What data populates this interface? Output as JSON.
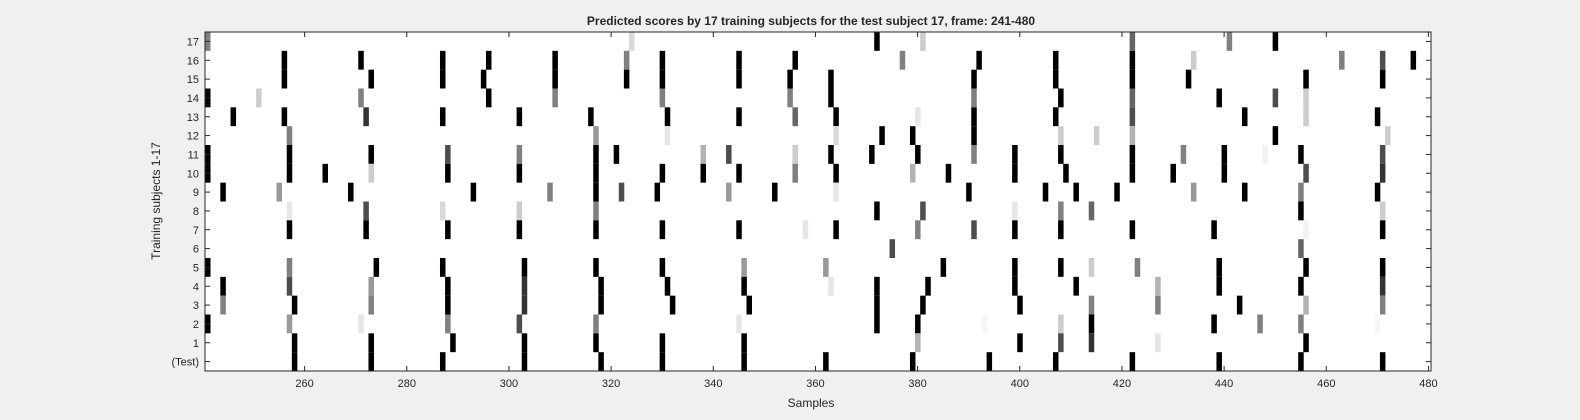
{
  "chart_data": {
    "type": "heatmap",
    "title": "Predicted scores by 17 training subjects for the test subject 17, frame: 241-480",
    "xlabel": "Samples",
    "ylabel": "Training subjects 1-17",
    "xlim": [
      241,
      480
    ],
    "xticks": [
      260,
      280,
      300,
      320,
      340,
      360,
      380,
      400,
      420,
      440,
      460,
      480
    ],
    "rows": [
      "17",
      "16",
      "15",
      "14",
      "13",
      "12",
      "11",
      "10",
      "9",
      "8",
      "7",
      "6",
      "5",
      "4",
      "3",
      "2",
      "1",
      "(Test)"
    ],
    "colormap": "gray (0 = black, 1 = white)",
    "background_value": 1,
    "cells": {
      "17": [
        [
          241,
          0.5
        ],
        [
          324,
          0.85
        ],
        [
          372,
          0
        ],
        [
          381,
          0.8
        ],
        [
          422,
          0.4
        ],
        [
          441,
          0.5
        ],
        [
          450,
          0
        ]
      ],
      "16": [
        [
          256,
          0
        ],
        [
          271,
          0
        ],
        [
          287,
          0
        ],
        [
          296,
          0
        ],
        [
          309,
          0
        ],
        [
          323,
          0.5
        ],
        [
          330,
          0
        ],
        [
          345,
          0
        ],
        [
          356,
          0
        ],
        [
          377,
          0.5
        ],
        [
          392,
          0
        ],
        [
          407,
          0
        ],
        [
          422,
          0
        ],
        [
          434,
          0.8
        ],
        [
          463,
          0.5
        ],
        [
          471,
          0.3
        ],
        [
          477,
          0
        ]
      ],
      "15": [
        [
          256,
          0
        ],
        [
          273,
          0
        ],
        [
          287,
          0
        ],
        [
          295,
          0
        ],
        [
          309,
          0
        ],
        [
          323,
          0
        ],
        [
          330,
          0
        ],
        [
          345,
          0
        ],
        [
          355,
          0
        ],
        [
          363,
          0
        ],
        [
          391,
          0
        ],
        [
          407,
          0
        ],
        [
          422,
          0
        ],
        [
          433,
          0
        ],
        [
          456,
          0
        ],
        [
          471,
          0
        ]
      ],
      "14": [
        [
          241,
          0
        ],
        [
          251,
          0.8
        ],
        [
          271,
          0.5
        ],
        [
          296,
          0
        ],
        [
          309,
          0.5
        ],
        [
          330,
          0.5
        ],
        [
          355,
          0.5
        ],
        [
          363,
          0
        ],
        [
          391,
          0.5
        ],
        [
          408,
          0
        ],
        [
          422,
          0.4
        ],
        [
          439,
          0
        ],
        [
          450,
          0.3
        ],
        [
          456,
          0.8
        ]
      ],
      "13": [
        [
          246,
          0
        ],
        [
          256,
          0
        ],
        [
          272,
          0.2
        ],
        [
          287,
          0
        ],
        [
          302,
          0
        ],
        [
          316,
          0
        ],
        [
          331,
          0
        ],
        [
          345,
          0
        ],
        [
          356,
          0.4
        ],
        [
          364,
          0
        ],
        [
          380,
          0.9
        ],
        [
          391,
          0
        ],
        [
          407,
          0
        ],
        [
          422,
          0.3
        ],
        [
          444,
          0
        ],
        [
          456,
          0.8
        ],
        [
          470,
          0
        ]
      ],
      "12": [
        [
          257,
          0.5
        ],
        [
          317,
          0.6
        ],
        [
          331,
          0.9
        ],
        [
          364,
          0.85
        ],
        [
          373,
          0
        ],
        [
          379,
          0
        ],
        [
          391,
          0
        ],
        [
          408,
          0.8
        ],
        [
          415,
          0.8
        ],
        [
          422,
          0.7
        ],
        [
          450,
          0
        ],
        [
          472,
          0.8
        ]
      ],
      "11": [
        [
          241,
          0
        ],
        [
          257,
          0
        ],
        [
          273,
          0
        ],
        [
          288,
          0.3
        ],
        [
          302,
          0.5
        ],
        [
          317,
          0
        ],
        [
          321,
          0
        ],
        [
          338,
          0.7
        ],
        [
          343,
          0.3
        ],
        [
          356,
          0.8
        ],
        [
          363,
          0
        ],
        [
          371,
          0
        ],
        [
          380,
          0
        ],
        [
          391,
          0.5
        ],
        [
          399,
          0
        ],
        [
          408,
          0
        ],
        [
          422,
          0
        ],
        [
          432,
          0.5
        ],
        [
          440,
          0
        ],
        [
          448,
          0.95
        ],
        [
          455,
          0
        ],
        [
          471,
          0.3
        ]
      ],
      "10": [
        [
          241,
          0
        ],
        [
          257,
          0
        ],
        [
          264,
          0
        ],
        [
          273,
          0.8
        ],
        [
          288,
          0
        ],
        [
          302,
          0
        ],
        [
          317,
          0
        ],
        [
          330,
          0
        ],
        [
          338,
          0
        ],
        [
          345,
          0
        ],
        [
          356,
          0.5
        ],
        [
          364,
          0
        ],
        [
          379,
          0.7
        ],
        [
          386,
          0
        ],
        [
          399,
          0
        ],
        [
          409,
          0
        ],
        [
          422,
          0
        ],
        [
          430,
          0
        ],
        [
          440,
          0
        ],
        [
          456,
          0.3
        ],
        [
          471,
          0.2
        ]
      ],
      "9": [
        [
          244,
          0
        ],
        [
          255,
          0.6
        ],
        [
          269,
          0
        ],
        [
          293,
          0
        ],
        [
          308,
          0.5
        ],
        [
          317,
          0
        ],
        [
          322,
          0.3
        ],
        [
          329,
          0
        ],
        [
          343,
          0.6
        ],
        [
          352,
          0
        ],
        [
          364,
          0.9
        ],
        [
          390,
          0
        ],
        [
          405,
          0
        ],
        [
          411,
          0
        ],
        [
          419,
          0
        ],
        [
          434,
          0.6
        ],
        [
          444,
          0
        ],
        [
          455,
          0.5
        ],
        [
          470,
          0
        ]
      ],
      "8": [
        [
          257,
          0.9
        ],
        [
          272,
          0.3
        ],
        [
          287,
          0.85
        ],
        [
          302,
          0.8
        ],
        [
          317,
          0.5
        ],
        [
          372,
          0
        ],
        [
          381,
          0.3
        ],
        [
          399,
          0.9
        ],
        [
          408,
          0.5
        ],
        [
          414,
          0.4
        ],
        [
          455,
          0
        ],
        [
          471,
          0.8
        ]
      ],
      "7": [
        [
          257,
          0
        ],
        [
          272,
          0
        ],
        [
          288,
          0
        ],
        [
          302,
          0
        ],
        [
          317,
          0
        ],
        [
          330,
          0
        ],
        [
          345,
          0
        ],
        [
          358,
          0.9
        ],
        [
          364,
          0
        ],
        [
          380,
          0.5
        ],
        [
          391,
          0.3
        ],
        [
          399,
          0
        ],
        [
          408,
          0
        ],
        [
          422,
          0
        ],
        [
          438,
          0
        ],
        [
          456,
          0.95
        ],
        [
          471,
          0
        ]
      ],
      "6": [
        [
          375,
          0.3
        ],
        [
          455,
          0.4
        ]
      ],
      "5": [
        [
          241,
          0
        ],
        [
          257,
          0.5
        ],
        [
          274,
          0
        ],
        [
          287,
          0
        ],
        [
          303,
          0
        ],
        [
          317,
          0
        ],
        [
          330,
          0
        ],
        [
          346,
          0.6
        ],
        [
          362,
          0.6
        ],
        [
          385,
          0
        ],
        [
          399,
          0
        ],
        [
          408,
          0
        ],
        [
          414,
          0.8
        ],
        [
          423,
          0.5
        ],
        [
          439,
          0
        ],
        [
          456,
          0
        ],
        [
          471,
          0
        ]
      ],
      "4": [
        [
          244,
          0
        ],
        [
          257,
          0.3
        ],
        [
          273,
          0.6
        ],
        [
          288,
          0
        ],
        [
          303,
          0.2
        ],
        [
          318,
          0
        ],
        [
          331,
          0
        ],
        [
          346,
          0
        ],
        [
          363,
          0.9
        ],
        [
          372,
          0
        ],
        [
          382,
          0
        ],
        [
          399,
          0
        ],
        [
          411,
          0
        ],
        [
          427,
          0.7
        ],
        [
          439,
          0
        ],
        [
          455,
          0
        ],
        [
          471,
          0.2
        ]
      ],
      "3": [
        [
          244,
          0.5
        ],
        [
          258,
          0
        ],
        [
          273,
          0.5
        ],
        [
          288,
          0
        ],
        [
          303,
          0.2
        ],
        [
          318,
          0
        ],
        [
          332,
          0
        ],
        [
          347,
          0
        ],
        [
          372,
          0
        ],
        [
          381,
          0
        ],
        [
          400,
          0
        ],
        [
          414,
          0.5
        ],
        [
          427,
          0.5
        ],
        [
          443,
          0
        ],
        [
          456,
          0.7
        ],
        [
          471,
          0.5
        ]
      ],
      "2": [
        [
          241,
          0
        ],
        [
          257,
          0.6
        ],
        [
          271,
          0.9
        ],
        [
          288,
          0.5
        ],
        [
          302,
          0.3
        ],
        [
          317,
          0.5
        ],
        [
          345,
          0.9
        ],
        [
          372,
          0
        ],
        [
          380,
          0
        ],
        [
          393,
          0.97
        ],
        [
          408,
          0.8
        ],
        [
          414,
          0
        ],
        [
          438,
          0
        ],
        [
          447,
          0.5
        ],
        [
          455,
          0.5
        ],
        [
          470,
          0.97
        ]
      ],
      "1": [
        [
          258,
          0
        ],
        [
          273,
          0
        ],
        [
          289,
          0
        ],
        [
          303,
          0
        ],
        [
          317,
          0
        ],
        [
          330,
          0
        ],
        [
          346,
          0
        ],
        [
          380,
          0.7
        ],
        [
          400,
          0
        ],
        [
          408,
          0.3
        ],
        [
          414,
          0.2
        ],
        [
          427,
          0.9
        ],
        [
          456,
          0
        ]
      ],
      "(Test)": [
        [
          258,
          0
        ],
        [
          273,
          0
        ],
        [
          287,
          0
        ],
        [
          303,
          0
        ],
        [
          318,
          0
        ],
        [
          330,
          0
        ],
        [
          346,
          0
        ],
        [
          362,
          0
        ],
        [
          379,
          0
        ],
        [
          394,
          0
        ],
        [
          407,
          0
        ],
        [
          422,
          0
        ],
        [
          439,
          0
        ],
        [
          455,
          0
        ],
        [
          471,
          0
        ]
      ]
    }
  }
}
